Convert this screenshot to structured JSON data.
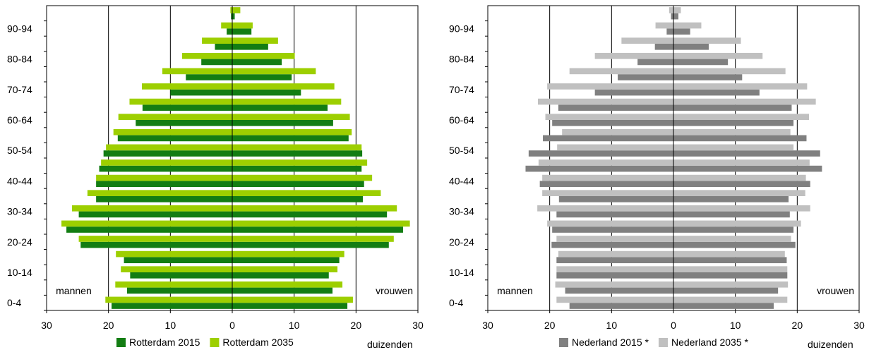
{
  "chart_data": [
    {
      "type": "bar",
      "orientation": "horizontal-population-pyramid",
      "categories": [
        "0-4",
        "5-9",
        "10-14",
        "15-19",
        "20-24",
        "25-29",
        "30-34",
        "35-39",
        "40-44",
        "45-49",
        "50-54",
        "55-59",
        "60-64",
        "65-69",
        "70-74",
        "75-79",
        "80-84",
        "85-89",
        "90-94",
        "95+"
      ],
      "y_tick_labels": [
        "0-4",
        "10-14",
        "20-24",
        "30-34",
        "40-44",
        "50-54",
        "60-64",
        "70-74",
        "80-84",
        "90-94"
      ],
      "x_ticks": [
        "30",
        "20",
        "10",
        "0",
        "10",
        "20",
        "30"
      ],
      "xlim": [
        -30,
        30
      ],
      "xlabel": "duizenden",
      "left_label": "mannen",
      "right_label": "vrouwen",
      "legend_position": "bottom",
      "grid": "vertical",
      "series": [
        {
          "name": "Rotterdam 2015",
          "color": "#137d13",
          "men": [
            19.5,
            17.0,
            16.5,
            17.5,
            24.5,
            26.8,
            24.8,
            22.0,
            22.0,
            21.5,
            20.8,
            18.5,
            15.6,
            14.5,
            10.0,
            7.5,
            5.0,
            2.8,
            0.9,
            0.2
          ],
          "women": [
            18.6,
            16.2,
            15.6,
            17.3,
            25.3,
            27.6,
            25.0,
            21.1,
            21.3,
            20.9,
            21.0,
            18.8,
            16.3,
            15.4,
            11.1,
            9.6,
            8.0,
            5.8,
            3.1,
            0.4
          ]
        },
        {
          "name": "Rotterdam 2035",
          "color": "#9dcf00",
          "men": [
            20.5,
            18.9,
            18.0,
            18.8,
            24.8,
            27.6,
            25.9,
            23.4,
            22.0,
            21.2,
            20.4,
            19.2,
            18.4,
            16.6,
            14.6,
            11.3,
            8.1,
            4.9,
            1.8,
            0.3
          ],
          "women": [
            19.5,
            17.8,
            17.0,
            18.1,
            26.1,
            28.7,
            26.6,
            24.0,
            22.6,
            21.8,
            20.9,
            19.3,
            19.0,
            17.6,
            16.5,
            13.5,
            10.1,
            7.4,
            3.3,
            1.3
          ]
        }
      ]
    },
    {
      "type": "bar",
      "orientation": "horizontal-population-pyramid",
      "categories": [
        "0-4",
        "5-9",
        "10-14",
        "15-19",
        "20-24",
        "25-29",
        "30-34",
        "35-39",
        "40-44",
        "45-49",
        "50-54",
        "55-59",
        "60-64",
        "65-69",
        "70-74",
        "75-79",
        "80-84",
        "85-89",
        "90-94",
        "95+"
      ],
      "y_tick_labels": [
        "0-4",
        "10-14",
        "20-24",
        "30-34",
        "40-44",
        "50-54",
        "60-64",
        "70-74",
        "80-84",
        "90-94"
      ],
      "x_ticks": [
        "30",
        "20",
        "10",
        "0",
        "10",
        "20",
        "30"
      ],
      "xlim": [
        -30,
        30
      ],
      "xlabel": "duizenden",
      "left_label": "mannen",
      "right_label": "vrouwen",
      "legend_position": "bottom",
      "grid": "vertical",
      "series": [
        {
          "name": "Nederland 2015 *",
          "color": "#808080",
          "men": [
            16.8,
            17.5,
            18.9,
            18.9,
            19.7,
            19.6,
            18.9,
            18.5,
            21.6,
            23.9,
            23.4,
            21.1,
            19.6,
            18.6,
            12.7,
            9.0,
            5.8,
            3.0,
            1.1,
            0.4
          ],
          "women": [
            16.2,
            16.9,
            18.4,
            18.3,
            19.7,
            19.4,
            18.8,
            18.6,
            22.1,
            24.0,
            23.7,
            21.5,
            19.4,
            19.1,
            13.9,
            11.1,
            8.8,
            5.7,
            2.7,
            0.8
          ]
        },
        {
          "name": "Nederland 2035 *",
          "color": "#c0c0c0",
          "men": [
            18.9,
            19.1,
            18.9,
            18.6,
            18.9,
            20.4,
            22.0,
            21.2,
            21.2,
            21.8,
            18.8,
            18.0,
            20.7,
            21.9,
            20.4,
            16.8,
            12.7,
            8.4,
            2.9,
            0.7
          ],
          "women": [
            18.4,
            18.5,
            18.4,
            18.0,
            19.0,
            20.6,
            22.1,
            21.3,
            21.4,
            22.0,
            19.4,
            18.9,
            21.9,
            23.0,
            21.6,
            18.1,
            14.4,
            10.9,
            4.5,
            1.2
          ]
        }
      ]
    }
  ]
}
